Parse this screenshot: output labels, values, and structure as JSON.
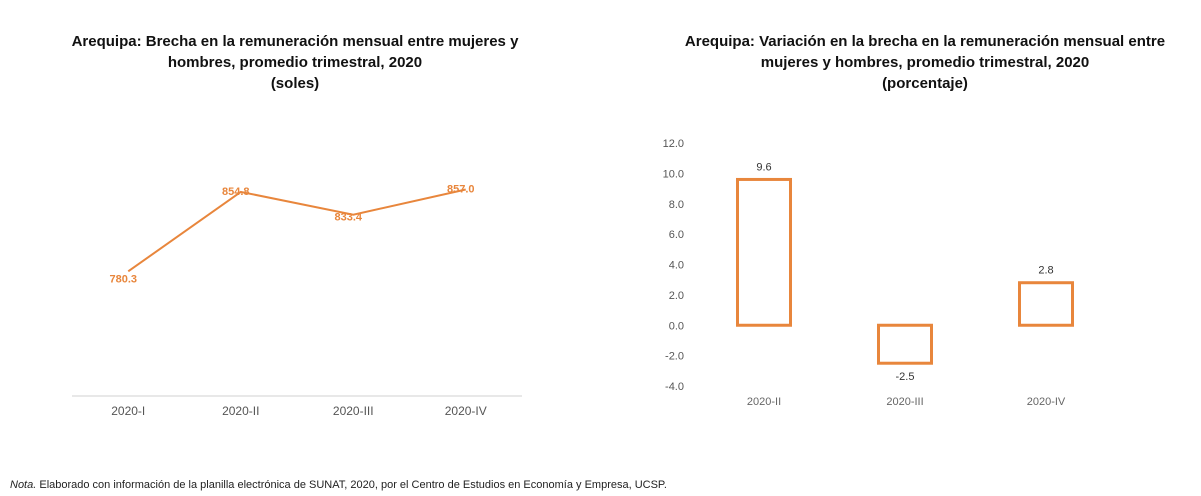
{
  "chart_data": [
    {
      "type": "line",
      "title": "Arequipa: Brecha en la remuneración mensual entre mujeres y\nhombres, promedio trimestral, 2020\n(soles)",
      "categories": [
        "2020-I",
        "2020-II",
        "2020-III",
        "2020-IV"
      ],
      "series": [
        {
          "values": [
            780.3,
            854.8,
            833.4,
            857.0
          ]
        }
      ],
      "data_labels": [
        "780.3",
        "854.8",
        "833.4",
        "857.0"
      ],
      "color": "#E8863C",
      "ylim": [
        745,
        880
      ],
      "grid": false,
      "legend": "none"
    },
    {
      "type": "bar",
      "title": "Arequipa: Variación en la brecha en la remuneración mensual entre\nmujeres y hombres, promedio trimestral, 2020\n(porcentaje)",
      "categories": [
        "2020-II",
        "2020-III",
        "2020-IV"
      ],
      "values": [
        9.6,
        -2.5,
        2.8
      ],
      "data_labels": [
        "9.6",
        "-2.5",
        "2.8"
      ],
      "yticks": [
        "12.0",
        "10.0",
        "8.0",
        "6.0",
        "4.0",
        "2.0",
        "0.0",
        "-2.0",
        "-4.0"
      ],
      "ylim": [
        -4,
        12
      ],
      "color": "#E8863C",
      "grid": false,
      "legend": "none"
    }
  ],
  "note": {
    "prefix": "Nota.",
    "text": " Elaborado con información de la planilla electrónica de SUNAT, 2020, por el Centro de Estudios en Economía y Empresa, UCSP."
  }
}
